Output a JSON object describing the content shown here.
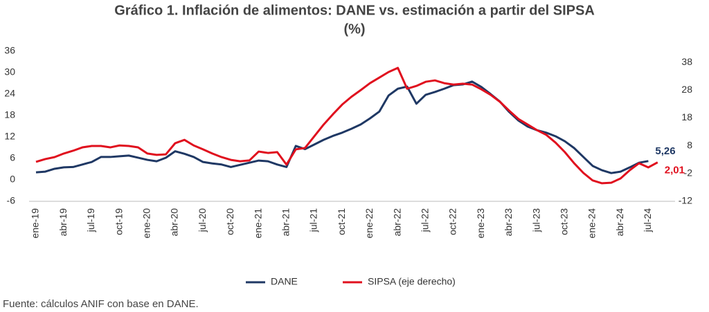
{
  "chart_data": {
    "type": "line",
    "title": [
      "Gráfico 1. Inflación de alimentos: DANE vs. estimación a partir del SIPSA",
      "(%)"
    ],
    "categories": [
      "ene-19",
      null,
      null,
      "abr-19",
      null,
      null,
      "jul-19",
      null,
      null,
      "oct-19",
      null,
      null,
      "ene-20",
      null,
      null,
      "abr-20",
      null,
      null,
      "jul-20",
      null,
      null,
      "oct-20",
      null,
      null,
      "ene-21",
      null,
      null,
      "abr-21",
      null,
      null,
      "jul-21",
      null,
      null,
      "oct-21",
      null,
      null,
      "ene-22",
      null,
      null,
      "abr-22",
      null,
      null,
      "jul-22",
      null,
      null,
      "oct-22",
      null,
      null,
      "ene-23",
      null,
      null,
      "abr-23",
      null,
      null,
      "jul-23",
      null,
      null,
      "oct-23",
      null,
      null,
      "ene-24",
      null,
      null,
      "abr-24",
      null,
      null,
      "jul-24",
      null
    ],
    "series": [
      {
        "name": "DANE",
        "color": "#1f3864",
        "end_label": "5,26",
        "values": [
          2.1,
          2.3,
          3.1,
          3.5,
          3.6,
          4.3,
          5.0,
          6.4,
          6.4,
          6.6,
          6.8,
          6.2,
          5.6,
          5.2,
          6.2,
          8.0,
          7.3,
          6.4,
          5.0,
          4.6,
          4.3,
          3.6,
          4.2,
          4.8,
          5.4,
          5.2,
          4.3,
          3.6,
          9.5,
          8.6,
          9.9,
          11.2,
          12.3,
          13.2,
          14.3,
          15.5,
          17.2,
          19.1,
          23.6,
          25.5,
          26.1,
          21.3,
          23.8,
          24.6,
          25.5,
          26.5,
          26.7,
          27.5,
          26.0,
          24.0,
          21.9,
          19.0,
          16.6,
          14.9,
          13.9,
          13.2,
          12.2,
          10.8,
          8.9,
          6.4,
          3.9,
          2.7,
          1.9,
          2.3,
          3.5,
          4.8,
          5.26,
          null
        ]
      },
      {
        "name": "SIPSA (eje derecho)",
        "color": "#e0101e",
        "axis": "y2",
        "end_label": "2,01",
        "values": [
          2.2,
          3.2,
          3.9,
          5.2,
          6.2,
          7.4,
          7.9,
          7.9,
          7.4,
          8.1,
          7.9,
          7.4,
          5.2,
          4.7,
          4.9,
          8.9,
          10.1,
          8.1,
          6.7,
          5.2,
          3.9,
          2.9,
          2.4,
          2.7,
          5.9,
          5.4,
          5.7,
          1.2,
          6.7,
          7.2,
          11.4,
          15.6,
          19.3,
          22.8,
          25.6,
          28.0,
          30.5,
          32.5,
          34.5,
          36.0,
          28.5,
          29.5,
          31.0,
          31.5,
          30.5,
          30.0,
          30.3,
          30.0,
          28.3,
          26.3,
          23.8,
          20.6,
          17.6,
          15.6,
          13.6,
          11.9,
          9.1,
          5.7,
          1.7,
          -1.8,
          -4.5,
          -5.5,
          -5.3,
          -3.8,
          -0.8,
          1.7,
          0.2,
          2.01
        ]
      }
    ],
    "ylim": [
      -6,
      36
    ],
    "yticks": [
      -6,
      0,
      6,
      12,
      18,
      24,
      30,
      36
    ],
    "y2lim": [
      -12,
      42
    ],
    "y2ticks": [
      -12,
      -2,
      8,
      18,
      28,
      38
    ],
    "legend": "bottom",
    "source": "Fuente: cálculos ANIF con base en DANE."
  }
}
